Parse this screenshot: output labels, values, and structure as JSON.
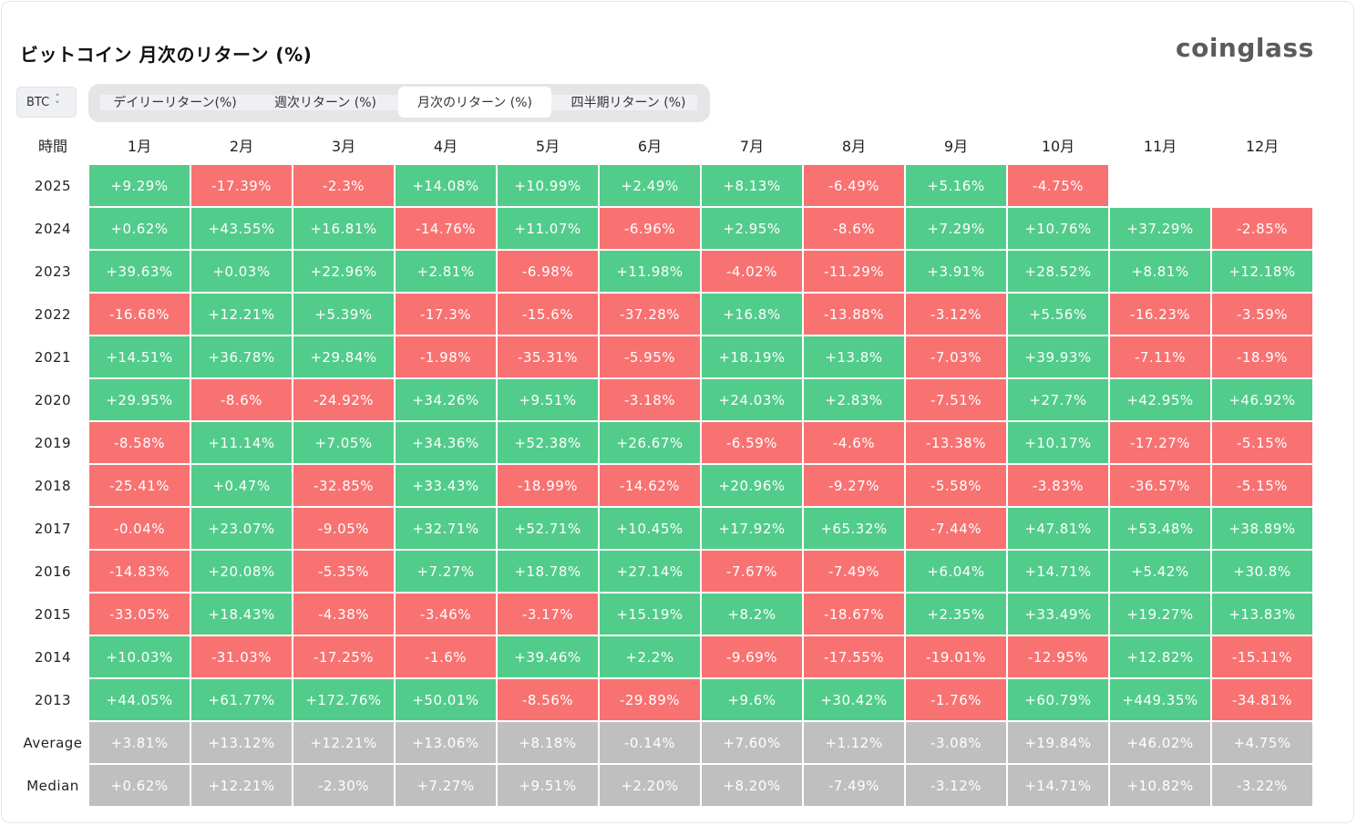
{
  "header": {
    "title": "ビットコイン 月次のリターン (%)",
    "logo": "coinglass"
  },
  "asset_select": {
    "value": "BTC",
    "icon": "up-down-chevron-icon"
  },
  "tabs": [
    {
      "label": "デイリーリターン(%)",
      "active": false
    },
    {
      "label": "週次リターン (%)",
      "active": false
    },
    {
      "label": "月次のリターン (%)",
      "active": true
    },
    {
      "label": "四半期リターン (%)",
      "active": false
    }
  ],
  "colors": {
    "positive": "#52cc8b",
    "negative": "#f87272",
    "summary": "#bfbfbf"
  },
  "table": {
    "corner_label": "時間",
    "months": [
      "1月",
      "2月",
      "3月",
      "4月",
      "5月",
      "6月",
      "7月",
      "8月",
      "9月",
      "10月",
      "11月",
      "12月"
    ],
    "rows": [
      {
        "year": "2025",
        "values": [
          "+9.29%",
          "-17.39%",
          "-2.3%",
          "+14.08%",
          "+10.99%",
          "+2.49%",
          "+8.13%",
          "-6.49%",
          "+5.16%",
          "-4.75%",
          null,
          null
        ]
      },
      {
        "year": "2024",
        "values": [
          "+0.62%",
          "+43.55%",
          "+16.81%",
          "-14.76%",
          "+11.07%",
          "-6.96%",
          "+2.95%",
          "-8.6%",
          "+7.29%",
          "+10.76%",
          "+37.29%",
          "-2.85%"
        ]
      },
      {
        "year": "2023",
        "values": [
          "+39.63%",
          "+0.03%",
          "+22.96%",
          "+2.81%",
          "-6.98%",
          "+11.98%",
          "-4.02%",
          "-11.29%",
          "+3.91%",
          "+28.52%",
          "+8.81%",
          "+12.18%"
        ]
      },
      {
        "year": "2022",
        "values": [
          "-16.68%",
          "+12.21%",
          "+5.39%",
          "-17.3%",
          "-15.6%",
          "-37.28%",
          "+16.8%",
          "-13.88%",
          "-3.12%",
          "+5.56%",
          "-16.23%",
          "-3.59%"
        ]
      },
      {
        "year": "2021",
        "values": [
          "+14.51%",
          "+36.78%",
          "+29.84%",
          "-1.98%",
          "-35.31%",
          "-5.95%",
          "+18.19%",
          "+13.8%",
          "-7.03%",
          "+39.93%",
          "-7.11%",
          "-18.9%"
        ]
      },
      {
        "year": "2020",
        "values": [
          "+29.95%",
          "-8.6%",
          "-24.92%",
          "+34.26%",
          "+9.51%",
          "-3.18%",
          "+24.03%",
          "+2.83%",
          "-7.51%",
          "+27.7%",
          "+42.95%",
          "+46.92%"
        ]
      },
      {
        "year": "2019",
        "values": [
          "-8.58%",
          "+11.14%",
          "+7.05%",
          "+34.36%",
          "+52.38%",
          "+26.67%",
          "-6.59%",
          "-4.6%",
          "-13.38%",
          "+10.17%",
          "-17.27%",
          "-5.15%"
        ]
      },
      {
        "year": "2018",
        "values": [
          "-25.41%",
          "+0.47%",
          "-32.85%",
          "+33.43%",
          "-18.99%",
          "-14.62%",
          "+20.96%",
          "-9.27%",
          "-5.58%",
          "-3.83%",
          "-36.57%",
          "-5.15%"
        ]
      },
      {
        "year": "2017",
        "values": [
          "-0.04%",
          "+23.07%",
          "-9.05%",
          "+32.71%",
          "+52.71%",
          "+10.45%",
          "+17.92%",
          "+65.32%",
          "-7.44%",
          "+47.81%",
          "+53.48%",
          "+38.89%"
        ]
      },
      {
        "year": "2016",
        "values": [
          "-14.83%",
          "+20.08%",
          "-5.35%",
          "+7.27%",
          "+18.78%",
          "+27.14%",
          "-7.67%",
          "-7.49%",
          "+6.04%",
          "+14.71%",
          "+5.42%",
          "+30.8%"
        ]
      },
      {
        "year": "2015",
        "values": [
          "-33.05%",
          "+18.43%",
          "-4.38%",
          "-3.46%",
          "-3.17%",
          "+15.19%",
          "+8.2%",
          "-18.67%",
          "+2.35%",
          "+33.49%",
          "+19.27%",
          "+13.83%"
        ]
      },
      {
        "year": "2014",
        "values": [
          "+10.03%",
          "-31.03%",
          "-17.25%",
          "-1.6%",
          "+39.46%",
          "+2.2%",
          "-9.69%",
          "-17.55%",
          "-19.01%",
          "-12.95%",
          "+12.82%",
          "-15.11%"
        ]
      },
      {
        "year": "2013",
        "values": [
          "+44.05%",
          "+61.77%",
          "+172.76%",
          "+50.01%",
          "-8.56%",
          "-29.89%",
          "+9.6%",
          "+30.42%",
          "-1.76%",
          "+60.79%",
          "+449.35%",
          "-34.81%"
        ]
      }
    ],
    "summary": [
      {
        "label": "Average",
        "values": [
          "+3.81%",
          "+13.12%",
          "+12.21%",
          "+13.06%",
          "+8.18%",
          "-0.14%",
          "+7.60%",
          "+1.12%",
          "-3.08%",
          "+19.84%",
          "+46.02%",
          "+4.75%"
        ]
      },
      {
        "label": "Median",
        "values": [
          "+0.62%",
          "+12.21%",
          "-2.30%",
          "+7.27%",
          "+9.51%",
          "+2.20%",
          "+8.20%",
          "-7.49%",
          "-3.12%",
          "+14.71%",
          "+10.82%",
          "-3.22%"
        ]
      }
    ]
  }
}
